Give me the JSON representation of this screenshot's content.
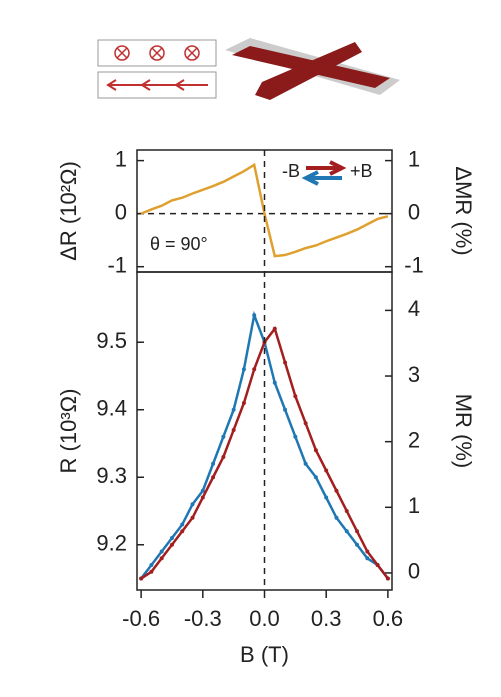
{
  "chart_data": [
    {
      "type": "line",
      "ylabel": "ΔR (10²Ω)",
      "y2label": "ΔMR (%)",
      "annotation": "θ = 90°",
      "legend_labels": [
        "-B",
        "+B"
      ],
      "legend_colors": [
        "#a31f1f",
        "#1f77b4"
      ],
      "xlim": [
        -0.62,
        0.62
      ],
      "ylim": [
        -1.1,
        1.2
      ],
      "yticks": [
        -1,
        0,
        1
      ],
      "y2lim": [
        -1.1,
        1.2
      ],
      "y2ticks": [
        -1,
        0,
        1
      ],
      "x": [
        -0.6,
        -0.55,
        -0.5,
        -0.45,
        -0.4,
        -0.35,
        -0.3,
        -0.25,
        -0.2,
        -0.15,
        -0.1,
        -0.05,
        0.0,
        0.05,
        0.1,
        0.15,
        0.2,
        0.25,
        0.3,
        0.35,
        0.4,
        0.45,
        0.5,
        0.55,
        0.6
      ],
      "series": [
        {
          "color": "#e0a030",
          "values": [
            0.0,
            0.08,
            0.15,
            0.25,
            0.3,
            0.38,
            0.45,
            0.52,
            0.6,
            0.7,
            0.8,
            0.92,
            0.0,
            -0.8,
            -0.78,
            -0.72,
            -0.65,
            -0.6,
            -0.52,
            -0.45,
            -0.38,
            -0.3,
            -0.2,
            -0.1,
            -0.05
          ]
        }
      ]
    },
    {
      "type": "line",
      "xlabel": "B (T)",
      "ylabel": "R (10³Ω)",
      "y2label": "MR (%)",
      "xlim": [
        -0.62,
        0.62
      ],
      "xticks": [
        -0.6,
        -0.3,
        {
          "value": 0,
          "label": "0.0"
        },
        0.3,
        0.6
      ],
      "ylim": [
        9.133,
        9.604
      ],
      "yticks": [
        9.2,
        9.3,
        9.4,
        9.5
      ],
      "y2lim": [
        -0.26,
        4.585
      ],
      "y2ticks": [
        0,
        1,
        2,
        3,
        4
      ],
      "x": [
        -0.6,
        -0.55,
        -0.5,
        -0.45,
        -0.4,
        -0.35,
        -0.3,
        -0.25,
        -0.2,
        -0.15,
        -0.1,
        -0.05,
        0.0,
        0.05,
        0.1,
        0.15,
        0.2,
        0.25,
        0.3,
        0.35,
        0.4,
        0.45,
        0.5,
        0.55,
        0.6
      ],
      "series": [
        {
          "color": "#1f77b4",
          "values": [
            9.15,
            9.17,
            9.19,
            9.21,
            9.23,
            9.26,
            9.28,
            9.32,
            9.36,
            9.4,
            9.46,
            9.54,
            9.5,
            9.44,
            9.4,
            9.36,
            9.32,
            9.3,
            9.27,
            9.24,
            9.22,
            9.2,
            9.18,
            9.17,
            9.15
          ]
        },
        {
          "color": "#a31f1f",
          "values": [
            9.15,
            9.16,
            9.18,
            9.2,
            9.22,
            9.24,
            9.27,
            9.3,
            9.33,
            9.37,
            9.41,
            9.46,
            9.5,
            9.52,
            9.47,
            9.42,
            9.38,
            9.34,
            9.31,
            9.28,
            9.25,
            9.22,
            9.19,
            9.17,
            9.15
          ]
        }
      ]
    }
  ]
}
